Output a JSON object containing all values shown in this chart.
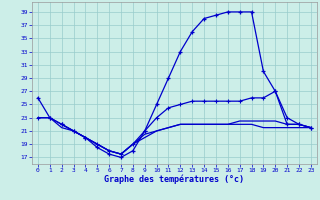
{
  "xlabel": "Graphe des températures (°c)",
  "bg_color": "#cceee8",
  "line_color": "#0000cc",
  "grid_color": "#99cccc",
  "x_ticks": [
    0,
    1,
    2,
    3,
    4,
    5,
    6,
    7,
    8,
    9,
    10,
    11,
    12,
    13,
    14,
    15,
    16,
    17,
    18,
    19,
    20,
    21,
    22,
    23
  ],
  "y_ticks": [
    17,
    19,
    21,
    23,
    25,
    27,
    29,
    31,
    33,
    35,
    37,
    39
  ],
  "ylim": [
    16.0,
    40.5
  ],
  "xlim": [
    -0.5,
    23.5
  ],
  "curve1_x": [
    0,
    1,
    2,
    3,
    4,
    5,
    6,
    7,
    8,
    9,
    10,
    11,
    12,
    13,
    14,
    15,
    16,
    17,
    18,
    19,
    20,
    21,
    22,
    23
  ],
  "curve1_y": [
    26,
    23,
    22,
    21,
    20,
    18.5,
    17.5,
    17,
    18,
    21,
    25,
    29,
    33,
    36,
    38,
    38.5,
    39,
    39,
    39,
    30,
    27,
    22,
    22,
    21.5
  ],
  "curve2_x": [
    0,
    1,
    2,
    3,
    4,
    5,
    6,
    7,
    8,
    9,
    10,
    11,
    12,
    13,
    14,
    15,
    16,
    17,
    18,
    19,
    20,
    21,
    22,
    23
  ],
  "curve2_y": [
    23,
    23,
    22,
    21,
    20,
    19,
    18,
    17.5,
    19,
    21,
    23,
    24.5,
    25,
    25.5,
    25.5,
    25.5,
    25.5,
    25.5,
    26,
    26,
    27,
    23,
    22,
    21.5
  ],
  "curve3_x": [
    0,
    1,
    2,
    3,
    4,
    5,
    6,
    7,
    8,
    9,
    10,
    11,
    12,
    13,
    14,
    15,
    16,
    17,
    18,
    19,
    20,
    21,
    22,
    23
  ],
  "curve3_y": [
    23,
    23,
    21.5,
    21,
    20,
    19,
    18,
    17.5,
    19,
    20.5,
    21,
    21.5,
    22,
    22,
    22,
    22,
    22,
    22.5,
    22.5,
    22.5,
    22.5,
    22,
    22,
    21.5
  ],
  "curve4_x": [
    2,
    3,
    4,
    5,
    6,
    7,
    8,
    9,
    10,
    11,
    12,
    13,
    14,
    15,
    16,
    17,
    18,
    19,
    20,
    21,
    22,
    23
  ],
  "curve4_y": [
    22,
    21,
    20,
    19,
    18,
    17.5,
    19,
    20,
    21,
    21.5,
    22,
    22,
    22,
    22,
    22,
    22,
    22,
    21.5,
    21.5,
    21.5,
    21.5,
    21.5
  ]
}
